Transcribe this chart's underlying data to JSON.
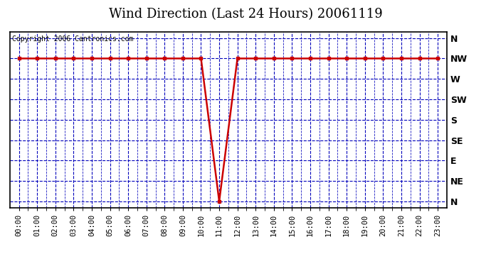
{
  "title": "Wind Direction (Last 24 Hours) 20061119",
  "copyright_text": "Copyright 2006 Cantronics.com",
  "x_labels": [
    "00:00",
    "01:00",
    "02:00",
    "03:00",
    "04:00",
    "05:00",
    "06:00",
    "07:00",
    "08:00",
    "09:00",
    "10:00",
    "11:00",
    "12:00",
    "13:00",
    "14:00",
    "15:00",
    "16:00",
    "17:00",
    "18:00",
    "19:00",
    "20:00",
    "21:00",
    "22:00",
    "23:00"
  ],
  "y_tick_labels": [
    "N",
    "NE",
    "E",
    "SE",
    "S",
    "SW",
    "W",
    "NW",
    "N"
  ],
  "y_tick_positions": [
    0,
    1,
    2,
    3,
    4,
    5,
    6,
    7,
    8
  ],
  "y_values_mapped": [
    7,
    7,
    7,
    7,
    7,
    7,
    7,
    7,
    7,
    7,
    7,
    0,
    7,
    7,
    7,
    7,
    7,
    7,
    7,
    7,
    7,
    7,
    7,
    7
  ],
  "x_values": [
    0,
    1,
    2,
    3,
    4,
    5,
    6,
    7,
    8,
    9,
    10,
    11,
    12,
    13,
    14,
    15,
    16,
    17,
    18,
    19,
    20,
    21,
    22,
    23
  ],
  "line_color": "#cc0000",
  "marker_color": "#cc0000",
  "grid_color": "#0000bb",
  "background_color": "#ffffff",
  "plot_bg_color": "#ffffff",
  "title_fontsize": 13,
  "copyright_fontsize": 7,
  "y_label_fontsize": 9,
  "x_label_fontsize": 7.5
}
